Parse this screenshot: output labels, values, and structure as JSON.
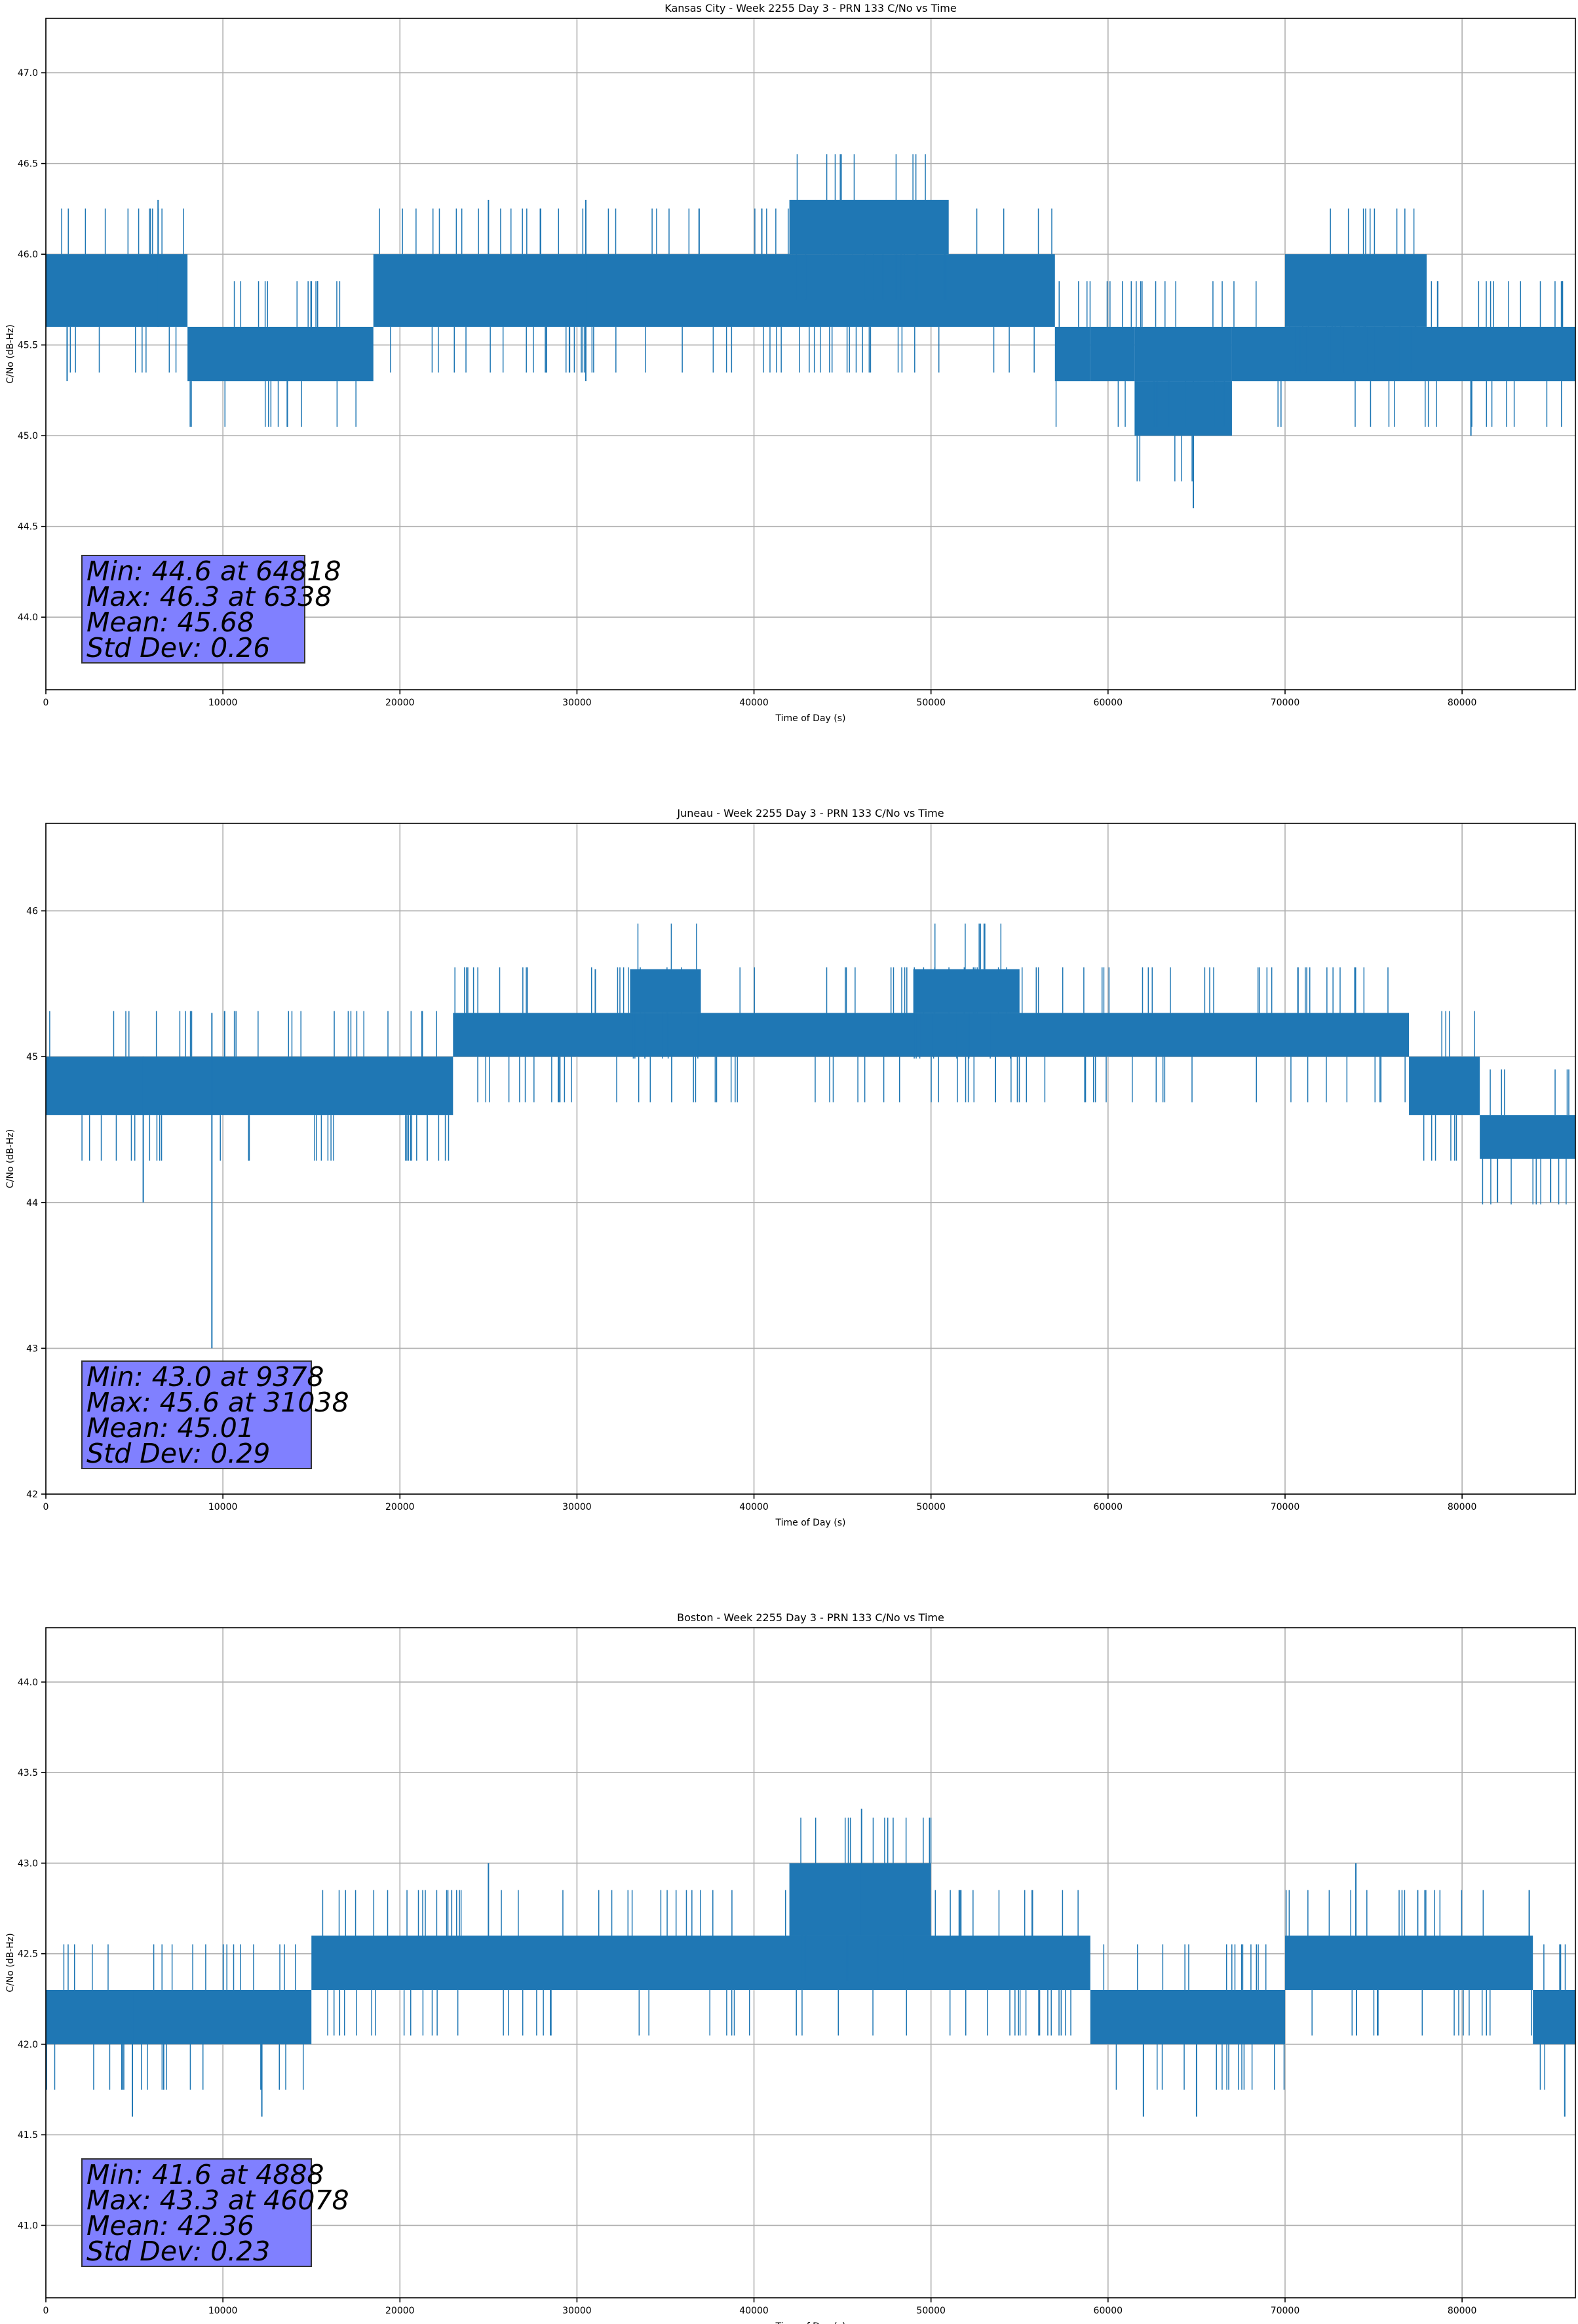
{
  "figure": {
    "series_color": "#1f77b4",
    "stats_box_color": "#8080ff"
  },
  "chart_data": [
    {
      "type": "line",
      "title": "Kansas City - Week 2255 Day 3 - PRN 133 C/No vs Time",
      "xlabel": "Time of Day (s)",
      "ylabel": "C/No (dB-Hz)",
      "xlim": [
        0,
        86400
      ],
      "ylim": [
        43.6,
        47.3
      ],
      "xticks": [
        0,
        10000,
        20000,
        30000,
        40000,
        50000,
        60000,
        70000,
        80000
      ],
      "yticks": [
        44.0,
        44.5,
        45.0,
        45.5,
        46.0,
        46.5,
        47.0
      ],
      "ytick_decimals": 1,
      "grid": true,
      "band_segments": [
        {
          "x0": 0,
          "x1": 8000,
          "lo": 45.6,
          "hi": 46.0
        },
        {
          "x0": 8000,
          "x1": 18500,
          "lo": 45.3,
          "hi": 45.6
        },
        {
          "x0": 18500,
          "x1": 57000,
          "lo": 45.6,
          "hi": 46.0
        },
        {
          "x0": 42000,
          "x1": 51000,
          "lo": 46.0,
          "hi": 46.3
        },
        {
          "x0": 57000,
          "x1": 59000,
          "lo": 45.3,
          "hi": 45.6
        },
        {
          "x0": 59000,
          "x1": 61500,
          "lo": 45.3,
          "hi": 45.6
        },
        {
          "x0": 61500,
          "x1": 67000,
          "lo": 45.0,
          "hi": 45.3
        },
        {
          "x0": 61500,
          "x1": 67000,
          "lo": 45.3,
          "hi": 45.6
        },
        {
          "x0": 67000,
          "x1": 86400,
          "lo": 45.3,
          "hi": 45.6
        },
        {
          "x0": 70000,
          "x1": 78000,
          "lo": 45.6,
          "hi": 46.0
        }
      ],
      "spikes": [
        {
          "x": 6338,
          "lo": 45.6,
          "hi": 46.3
        },
        {
          "x": 64818,
          "lo": 44.6,
          "hi": 45.3
        },
        {
          "x": 80500,
          "lo": 45.0,
          "hi": 45.3
        },
        {
          "x": 1200,
          "lo": 45.3,
          "hi": 45.6
        },
        {
          "x": 30500,
          "lo": 45.3,
          "hi": 46.3
        },
        {
          "x": 25000,
          "lo": 46.0,
          "hi": 46.3
        }
      ],
      "stats": {
        "min": "Min: 44.6 at 64818",
        "max": "Max: 46.3 at 6338",
        "mean": "Mean: 45.68",
        "std": "Std Dev: 0.26"
      }
    },
    {
      "type": "line",
      "title": "Juneau - Week 2255 Day 3 - PRN 133 C/No vs Time",
      "xlabel": "Time of Day (s)",
      "ylabel": "C/No (dB-Hz)",
      "xlim": [
        0,
        86400
      ],
      "ylim": [
        42.0,
        46.6
      ],
      "xticks": [
        0,
        10000,
        20000,
        30000,
        40000,
        50000,
        60000,
        70000,
        80000
      ],
      "yticks": [
        42,
        43,
        44,
        45,
        46
      ],
      "ytick_decimals": 0,
      "grid": true,
      "band_segments": [
        {
          "x0": 0,
          "x1": 23000,
          "lo": 44.6,
          "hi": 45.0
        },
        {
          "x0": 23000,
          "x1": 77000,
          "lo": 45.0,
          "hi": 45.3
        },
        {
          "x0": 33000,
          "x1": 37000,
          "lo": 45.3,
          "hi": 45.6
        },
        {
          "x0": 49000,
          "x1": 55000,
          "lo": 45.3,
          "hi": 45.6
        },
        {
          "x0": 77000,
          "x1": 81000,
          "lo": 44.6,
          "hi": 45.0
        },
        {
          "x0": 81000,
          "x1": 86400,
          "lo": 44.3,
          "hi": 44.6
        }
      ],
      "spikes": [
        {
          "x": 9378,
          "lo": 43.0,
          "hi": 45.3
        },
        {
          "x": 5500,
          "lo": 44.0,
          "hi": 45.0
        },
        {
          "x": 31038,
          "lo": 45.3,
          "hi": 45.6
        },
        {
          "x": 82000,
          "lo": 44.0,
          "hi": 44.3
        },
        {
          "x": 85000,
          "lo": 44.0,
          "hi": 44.3
        }
      ],
      "stats": {
        "min": "Min: 43.0 at 9378",
        "max": "Max: 45.6 at 31038",
        "mean": "Mean: 45.01",
        "std": "Std Dev: 0.29"
      }
    },
    {
      "type": "line",
      "title": "Boston - Week 2255 Day 3 - PRN 133 C/No vs Time",
      "xlabel": "Time of Day (s)",
      "ylabel": "C/No (dB-Hz)",
      "xlim": [
        0,
        86400
      ],
      "ylim": [
        40.6,
        44.3
      ],
      "xticks": [
        0,
        10000,
        20000,
        30000,
        40000,
        50000,
        60000,
        70000,
        80000
      ],
      "yticks": [
        41.0,
        41.5,
        42.0,
        42.5,
        43.0,
        43.5,
        44.0
      ],
      "ytick_decimals": 1,
      "grid": true,
      "band_segments": [
        {
          "x0": 0,
          "x1": 15000,
          "lo": 42.0,
          "hi": 42.3
        },
        {
          "x0": 15000,
          "x1": 59000,
          "lo": 42.3,
          "hi": 42.6
        },
        {
          "x0": 42000,
          "x1": 50000,
          "lo": 42.6,
          "hi": 43.0
        },
        {
          "x0": 59000,
          "x1": 70000,
          "lo": 42.0,
          "hi": 42.3
        },
        {
          "x0": 70000,
          "x1": 84000,
          "lo": 42.3,
          "hi": 42.6
        },
        {
          "x0": 84000,
          "x1": 86400,
          "lo": 42.0,
          "hi": 42.3
        }
      ],
      "spikes": [
        {
          "x": 46078,
          "lo": 42.6,
          "hi": 43.3
        },
        {
          "x": 4888,
          "lo": 41.6,
          "hi": 42.3
        },
        {
          "x": 12200,
          "lo": 41.6,
          "hi": 42.0
        },
        {
          "x": 62000,
          "lo": 41.6,
          "hi": 42.0
        },
        {
          "x": 65000,
          "lo": 41.6,
          "hi": 42.0
        },
        {
          "x": 85800,
          "lo": 41.6,
          "hi": 42.0
        },
        {
          "x": 25000,
          "lo": 42.6,
          "hi": 43.0
        },
        {
          "x": 74000,
          "lo": 42.6,
          "hi": 43.0
        }
      ],
      "stats": {
        "min": "Min: 41.6 at 4888",
        "max": "Max: 43.3 at 46078",
        "mean": "Mean: 42.36",
        "std": "Std Dev: 0.23"
      }
    }
  ]
}
